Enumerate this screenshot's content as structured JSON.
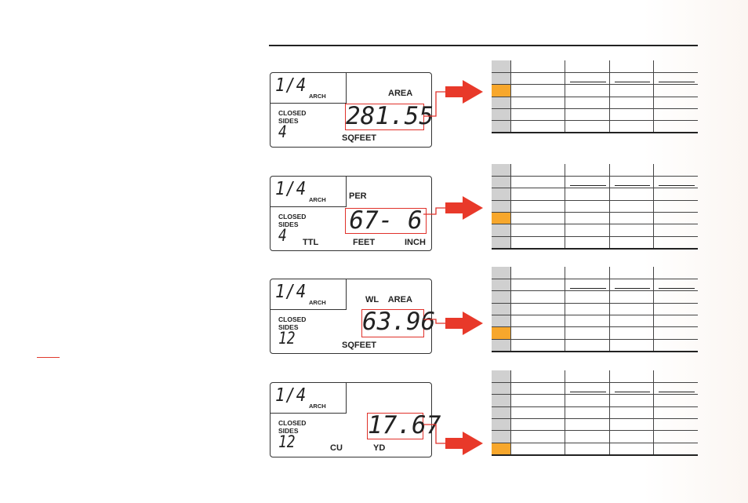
{
  "panels": [
    {
      "fraction": "1/4",
      "arch": "ARCH",
      "closed": "CLOSED",
      "sides": "SIDES",
      "sides_count": "4",
      "top_label": "AREA",
      "readout": "281.55",
      "unit_label": "SQFEET"
    },
    {
      "fraction": "1/4",
      "arch": "ARCH",
      "closed": "CLOSED",
      "sides": "SIDES",
      "sides_count": "4",
      "top_label": "PER",
      "readout": "67- 6",
      "ttl_label": "TTL",
      "unit_label": "FEET",
      "unit_label_2": "INCH"
    },
    {
      "fraction": "1/4",
      "arch": "ARCH",
      "closed": "CLOSED",
      "sides": "SIDES",
      "sides_count": "12",
      "top_label": "WL    AREA",
      "readout": "63.96",
      "unit_label": "SQFEET"
    },
    {
      "fraction": "1/4",
      "arch": "ARCH",
      "closed": "CLOSED",
      "sides": "SIDES",
      "sides_count": "12",
      "readout": "17.67",
      "unit_label": "CU",
      "unit_label_2": "YD"
    }
  ],
  "tables": [
    {
      "rows": 6,
      "highlight_row": 2,
      "highlight_col": 2
    },
    {
      "rows": 7,
      "highlight_row": 4,
      "highlight_col": 2
    },
    {
      "rows": 7,
      "highlight_row": 5,
      "highlight_col": 2
    },
    {
      "rows": 7,
      "highlight_row": 6,
      "highlight_col": 2
    }
  ],
  "colors": {
    "highlight": "#f7a72c",
    "header_gray": "#d0d0d0",
    "accent_red": "#e0312a"
  },
  "icons": [
    "right-arrow-icon"
  ]
}
